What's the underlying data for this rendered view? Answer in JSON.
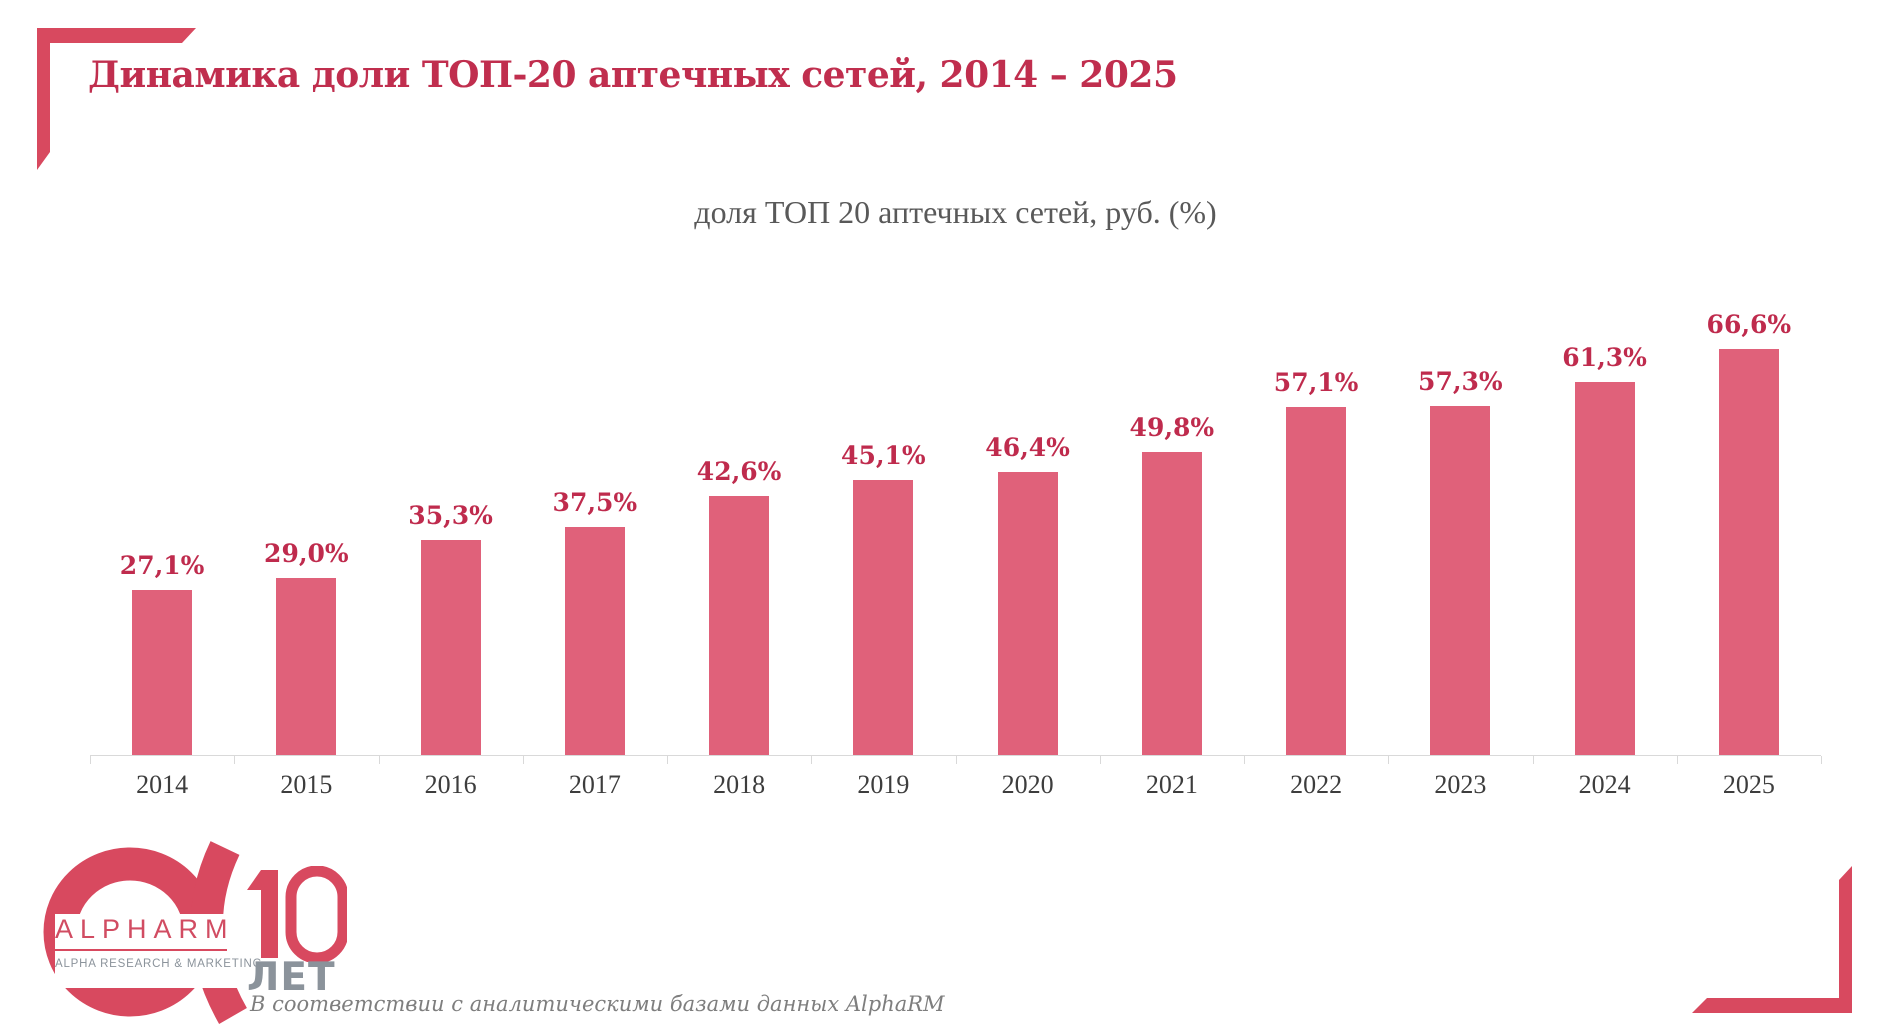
{
  "slide": {
    "title": "Динамика доли ТОП-20 аптечных сетей, 2014 – 2025",
    "source_note": "В соответствии с аналитическими базами данных AlphaRM"
  },
  "logo": {
    "brand": "ALPHARM",
    "tagline": "ALPHA RESEARCH & MARKETING",
    "anniversary_number": "10",
    "anniversary_unit": "ЛЕТ"
  },
  "colors": {
    "corner_red": "#d8495f",
    "title_red": "#c02e4e",
    "bar_fill": "#e0617a",
    "value_label_red": "#bf2b4d",
    "chart_title_gray": "#595959",
    "year_label_gray": "#3d3d3d",
    "axis_gray": "#d9d9d9",
    "logo_gray": "#8b939b",
    "footer_gray": "#7e7e7e"
  },
  "chart_data": {
    "type": "bar",
    "title": "доля ТОП 20 аптечных сетей, руб. (%)",
    "xlabel": "",
    "ylabel": "",
    "ylim": [
      0,
      70
    ],
    "grid": false,
    "legend": "none",
    "value_labels_position": "above-bars",
    "categories": [
      "2014",
      "2015",
      "2016",
      "2017",
      "2018",
      "2019",
      "2020",
      "2021",
      "2022",
      "2023",
      "2024",
      "2025"
    ],
    "values": [
      27.1,
      29.0,
      35.3,
      37.5,
      42.6,
      45.1,
      46.4,
      49.8,
      57.1,
      57.3,
      61.3,
      66.6
    ],
    "value_labels": [
      "27,1%",
      "29,0%",
      "35,3%",
      "37,5%",
      "42,6%",
      "45,1%",
      "46,4%",
      "49,8%",
      "57,1%",
      "57,3%",
      "61,3%",
      "66,6%"
    ]
  }
}
